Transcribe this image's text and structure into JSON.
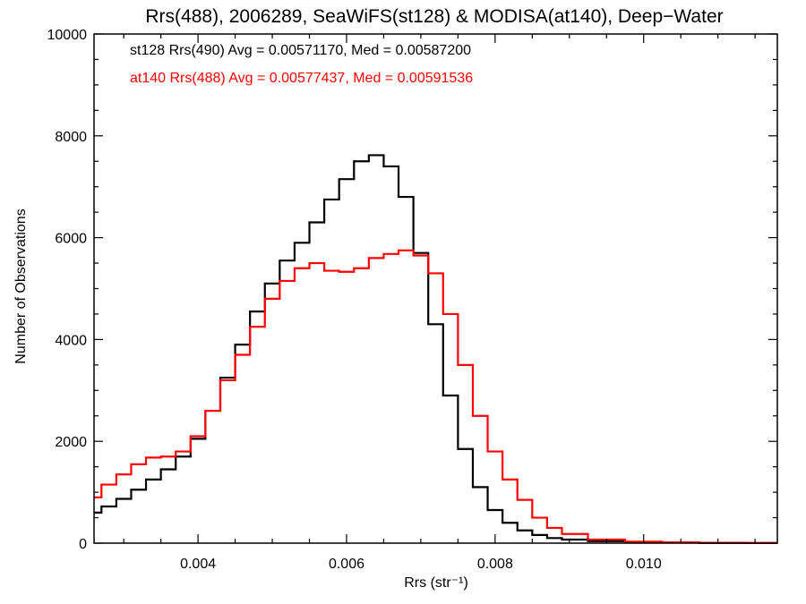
{
  "chart_data": {
    "type": "line",
    "title": "Rrs(488), 2006289, SeaWiFS(st128) & MODISA(at140), Deep−Water",
    "xlabel": "Rrs (str⁻¹)",
    "ylabel": "Number of Observations",
    "xlim": [
      0.0026,
      0.0118
    ],
    "ylim": [
      0,
      10000
    ],
    "x_ticks": [
      0.004,
      0.006,
      0.008,
      0.01
    ],
    "x_tick_labels": [
      "0.004",
      "0.006",
      "0.008",
      "0.010"
    ],
    "y_ticks": [
      0,
      2000,
      4000,
      6000,
      8000,
      10000
    ],
    "y_tick_labels": [
      "0",
      "2000",
      "4000",
      "6000",
      "8000",
      "10000"
    ],
    "grid": false,
    "step": true,
    "annotations": [
      {
        "text": "st128 Rrs(490) Avg = 0.00571170, Med = 0.00587200",
        "color": "#000000"
      },
      {
        "text": "at140 Rrs(488) Avg = 0.00577437, Med = 0.00591536",
        "color": "#ff0000"
      }
    ],
    "series": [
      {
        "color": "#000000",
        "points": [
          [
            0.0026,
            600
          ],
          [
            0.0028,
            720
          ],
          [
            0.003,
            870
          ],
          [
            0.0032,
            1050
          ],
          [
            0.0034,
            1250
          ],
          [
            0.0036,
            1450
          ],
          [
            0.0038,
            1700
          ],
          [
            0.004,
            2050
          ],
          [
            0.0042,
            2600
          ],
          [
            0.0044,
            3250
          ],
          [
            0.0046,
            3900
          ],
          [
            0.0048,
            4550
          ],
          [
            0.005,
            5100
          ],
          [
            0.0052,
            5550
          ],
          [
            0.0054,
            5900
          ],
          [
            0.0056,
            6300
          ],
          [
            0.0058,
            6750
          ],
          [
            0.006,
            7150
          ],
          [
            0.0062,
            7500
          ],
          [
            0.0064,
            7620
          ],
          [
            0.0066,
            7400
          ],
          [
            0.0068,
            6800
          ],
          [
            0.007,
            5700
          ],
          [
            0.0072,
            4300
          ],
          [
            0.0074,
            2900
          ],
          [
            0.0076,
            1850
          ],
          [
            0.0078,
            1100
          ],
          [
            0.008,
            650
          ],
          [
            0.0082,
            400
          ],
          [
            0.0084,
            250
          ],
          [
            0.0086,
            160
          ],
          [
            0.0088,
            100
          ],
          [
            0.009,
            70
          ],
          [
            0.0095,
            40
          ],
          [
            0.01,
            20
          ],
          [
            0.0105,
            10
          ],
          [
            0.011,
            5
          ],
          [
            0.0118,
            2
          ]
        ]
      },
      {
        "color": "#ff0000",
        "points": [
          [
            0.0026,
            900
          ],
          [
            0.0028,
            1150
          ],
          [
            0.003,
            1350
          ],
          [
            0.0032,
            1550
          ],
          [
            0.0034,
            1680
          ],
          [
            0.0036,
            1700
          ],
          [
            0.0038,
            1800
          ],
          [
            0.004,
            2100
          ],
          [
            0.0042,
            2600
          ],
          [
            0.0044,
            3200
          ],
          [
            0.0046,
            3700
          ],
          [
            0.0048,
            4250
          ],
          [
            0.005,
            4800
          ],
          [
            0.0052,
            5150
          ],
          [
            0.0054,
            5400
          ],
          [
            0.0056,
            5500
          ],
          [
            0.0058,
            5350
          ],
          [
            0.006,
            5330
          ],
          [
            0.0062,
            5400
          ],
          [
            0.0064,
            5600
          ],
          [
            0.0066,
            5680
          ],
          [
            0.0068,
            5750
          ],
          [
            0.007,
            5650
          ],
          [
            0.0072,
            5300
          ],
          [
            0.0074,
            4500
          ],
          [
            0.0076,
            3500
          ],
          [
            0.0078,
            2500
          ],
          [
            0.008,
            1800
          ],
          [
            0.0082,
            1250
          ],
          [
            0.0084,
            850
          ],
          [
            0.0086,
            500
          ],
          [
            0.0088,
            300
          ],
          [
            0.009,
            180
          ],
          [
            0.0095,
            70
          ],
          [
            0.01,
            30
          ],
          [
            0.0105,
            15
          ],
          [
            0.011,
            8
          ],
          [
            0.0118,
            3
          ]
        ]
      }
    ]
  }
}
